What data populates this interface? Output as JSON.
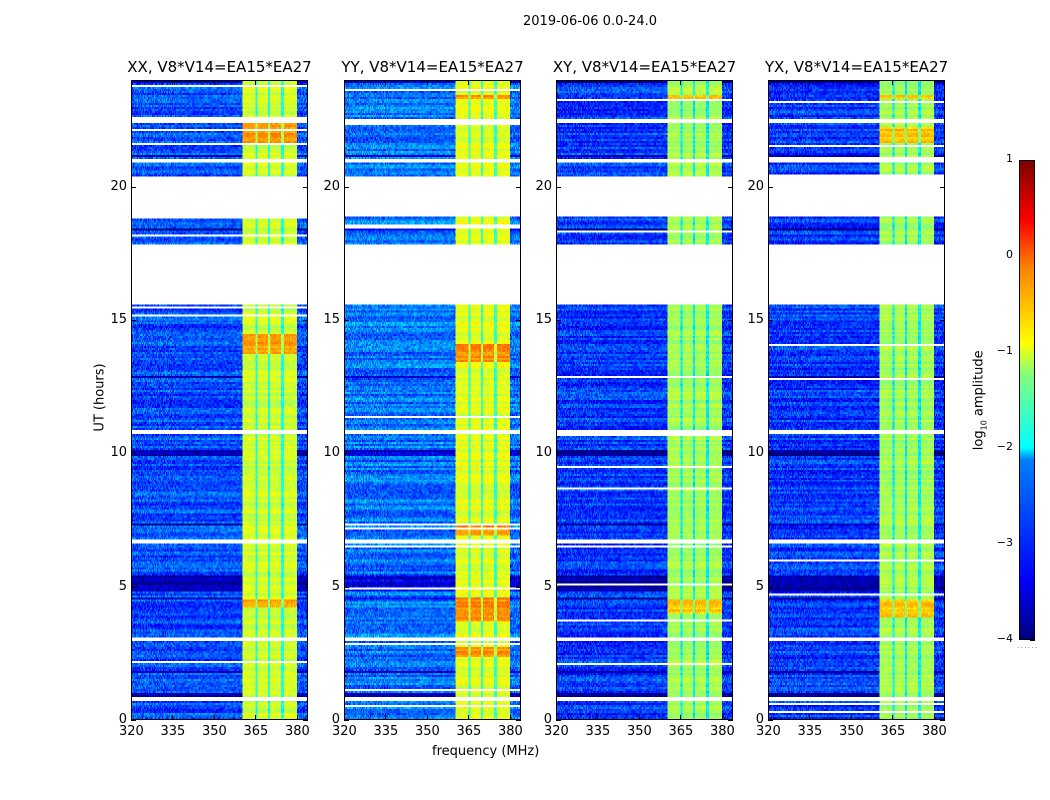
{
  "chart_data": {
    "type": "heatmap",
    "title": "2019-06-06 0.0-24.0",
    "xlabel": "frequency (MHz)",
    "ylabel": "UT (hours)",
    "xlim": [
      320,
      384
    ],
    "ylim": [
      0,
      24
    ],
    "xticks": [
      "320",
      "335",
      "350",
      "365",
      "380"
    ],
    "xtick_values": [
      320,
      335,
      350,
      365,
      380
    ],
    "yticks": [
      "0",
      "5",
      "10",
      "15",
      "20"
    ],
    "ytick_values": [
      0,
      5,
      10,
      15,
      20
    ],
    "colorbar": {
      "label_prefix": "log",
      "label_sub": "10",
      "label_suffix": " amplitude",
      "range": [
        -4,
        1
      ],
      "ticks": [
        "1",
        "0",
        "−1",
        "−2",
        "−3",
        "−4"
      ],
      "tick_values": [
        1,
        0,
        -1,
        -2,
        -3,
        -4
      ],
      "colormap": "jet"
    },
    "flagged_time_ranges_hours": [
      [
        18.9,
        20.37
      ],
      [
        15.57,
        17.86
      ],
      [
        22.4,
        22.6
      ],
      [
        20.9,
        21.05
      ],
      [
        10.75,
        10.9
      ],
      [
        6.6,
        6.75
      ],
      [
        2.9,
        3.05
      ],
      [
        0.7,
        0.8
      ]
    ],
    "rfi_band_mhz": [
      360.5,
      380.5
    ],
    "band_gaps_mhz": [
      365.5,
      370.2,
      375.0
    ],
    "panels": [
      {
        "title": "XX, V8*V14=EA15*EA27",
        "background_log_amp": -3.0,
        "band_log_amp": -1.1,
        "hot_hours": [
          [
            21.7,
            22.5
          ],
          [
            13.7,
            14.5
          ],
          [
            4.2,
            4.5
          ]
        ]
      },
      {
        "title": "YY, V8*V14=EA15*EA27",
        "background_log_amp": -2.8,
        "band_log_amp": -1.0,
        "hot_hours": [
          [
            3.7,
            4.6
          ],
          [
            2.3,
            2.7
          ],
          [
            6.9,
            7.3
          ],
          [
            13.4,
            14.1
          ],
          [
            23.3,
            23.5
          ]
        ]
      },
      {
        "title": "XY, V8*V14=EA15*EA27",
        "background_log_amp": -3.1,
        "band_log_amp": -1.3,
        "hot_hours": [
          [
            4.0,
            4.5
          ],
          [
            23.3,
            23.5
          ]
        ]
      },
      {
        "title": "YX, V8*V14=EA15*EA27",
        "background_log_amp": -3.1,
        "band_log_amp": -1.3,
        "hot_hours": [
          [
            3.8,
            4.5
          ],
          [
            21.7,
            22.3
          ],
          [
            23.3,
            23.5
          ]
        ]
      }
    ]
  }
}
